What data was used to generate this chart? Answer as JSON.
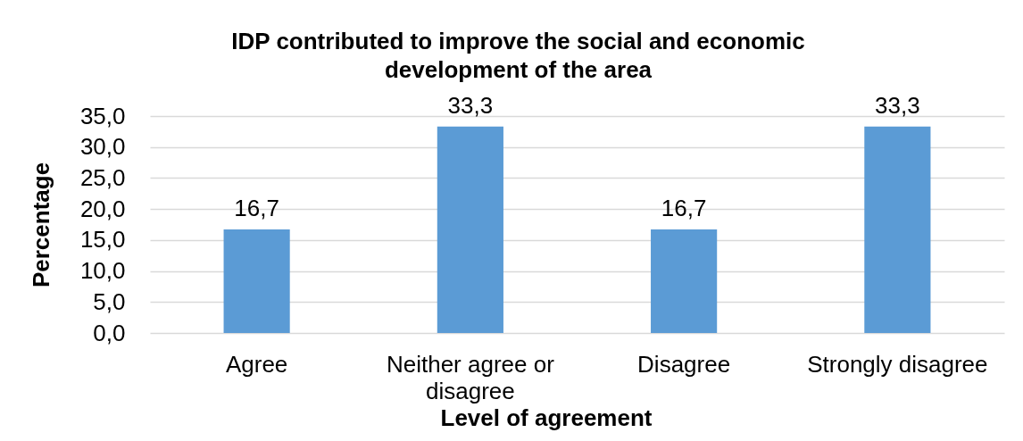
{
  "chart_data": {
    "type": "bar",
    "title": "IDP contributed to improve the social and economic development of the area",
    "xlabel": "Level of agreement",
    "ylabel": "Percentage",
    "categories": [
      "Agree",
      "Neither agree or disagree",
      "Disagree",
      "Strongly disagree"
    ],
    "values": [
      16.7,
      33.3,
      16.7,
      33.3
    ],
    "value_labels": [
      "16,7",
      "33,3",
      "16,7",
      "33,3"
    ],
    "color": "#5b9bd5",
    "ylim": [
      0,
      35
    ],
    "yticks": [
      {
        "value": 0,
        "label": "0,0"
      },
      {
        "value": 5,
        "label": "5,0"
      },
      {
        "value": 10,
        "label": "10,0"
      },
      {
        "value": 15,
        "label": "15,0"
      },
      {
        "value": 20,
        "label": "20,0"
      },
      {
        "value": 25,
        "label": "25,0"
      },
      {
        "value": 30,
        "label": "30,0"
      },
      {
        "value": 35,
        "label": "35,0"
      }
    ],
    "grid": "y"
  }
}
